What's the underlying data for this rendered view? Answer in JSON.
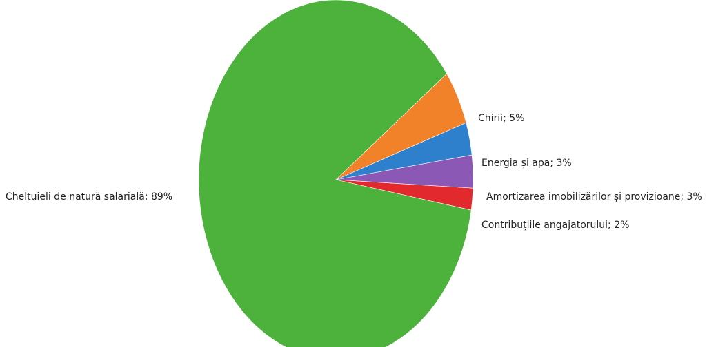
{
  "chart_data": {
    "type": "pie",
    "title": "",
    "slices": [
      {
        "label": "Cheltuieli de natură salarială; 89%",
        "value": 89,
        "color": "#4cb23c"
      },
      {
        "label": "Chirii; 5%",
        "value": 5,
        "color": "#f2822a"
      },
      {
        "label": "Energia și apa; 3%",
        "value": 3,
        "color": "#2e80cd"
      },
      {
        "label": "Amortizarea imobilizărilor și provizioane; 3%",
        "value": 3,
        "color": "#8b58b5"
      },
      {
        "label": "Contribuțiile angajatorului; 2%",
        "value": 2,
        "color": "#e22a2e"
      }
    ]
  }
}
